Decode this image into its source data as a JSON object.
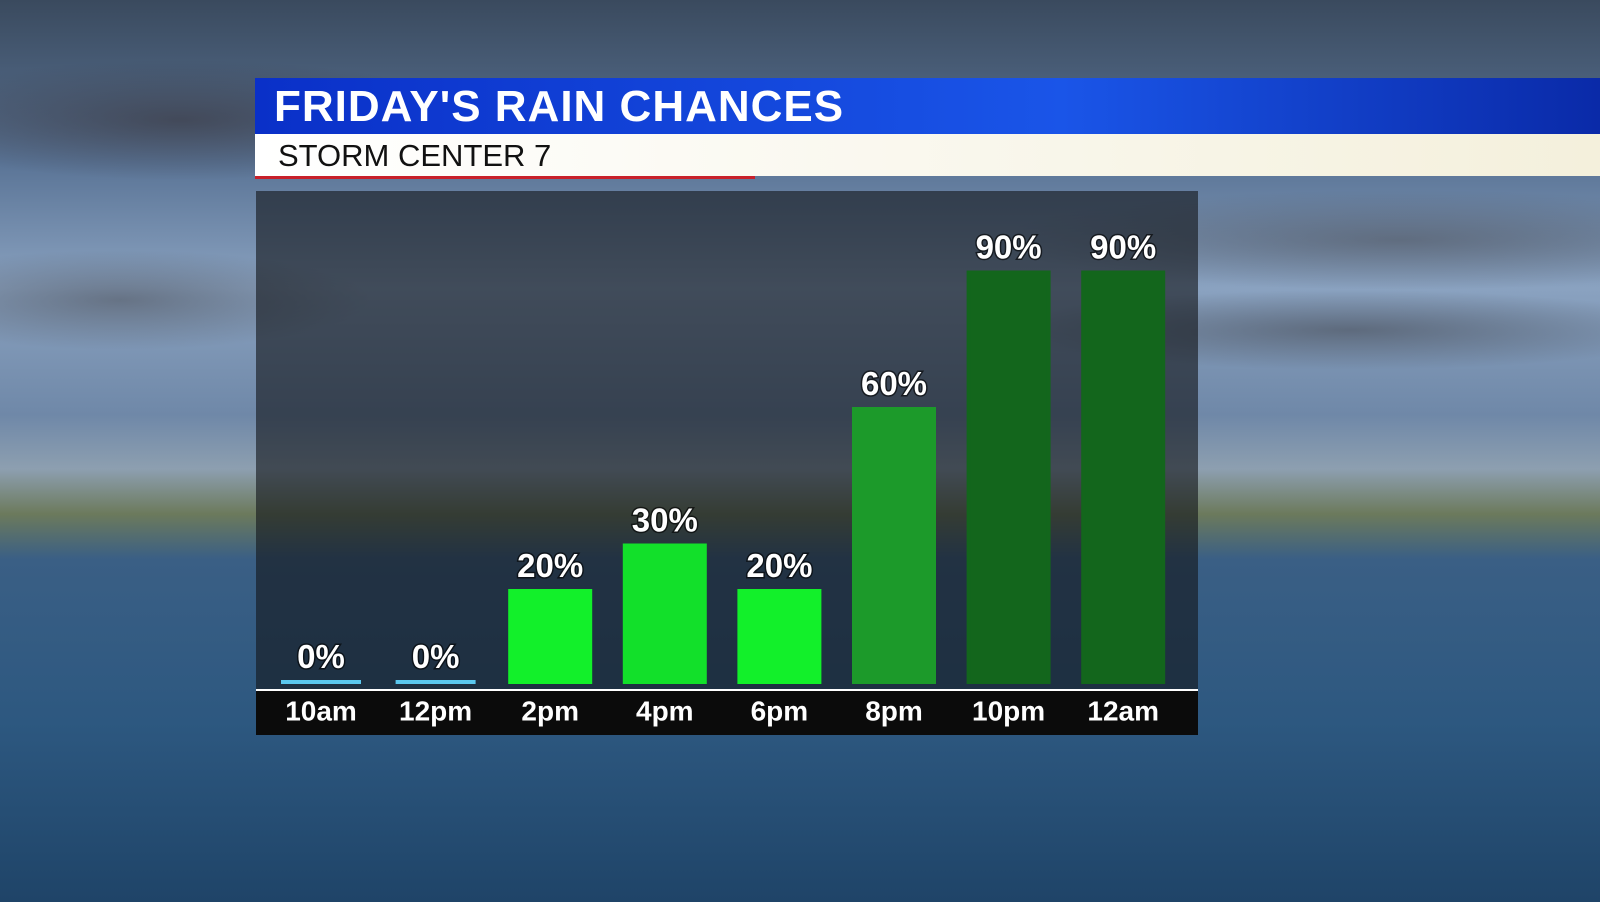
{
  "chart_data": {
    "type": "bar",
    "title": "FRIDAY'S RAIN CHANCES",
    "subtitle": "STORM CENTER 7",
    "categories": [
      "10am",
      "12pm",
      "2pm",
      "4pm",
      "6pm",
      "8pm",
      "10pm",
      "12am"
    ],
    "values": [
      0,
      0,
      20,
      30,
      20,
      60,
      90,
      90
    ],
    "value_labels": [
      "0%",
      "0%",
      "20%",
      "30%",
      "20%",
      "60%",
      "90%",
      "90%"
    ],
    "colors": [
      "#5bc8ef",
      "#5bc8ef",
      "#12f02a",
      "#12e02a",
      "#12f02a",
      "#1c9a2a",
      "#13661c",
      "#13661c"
    ],
    "ylim": [
      0,
      100
    ]
  }
}
